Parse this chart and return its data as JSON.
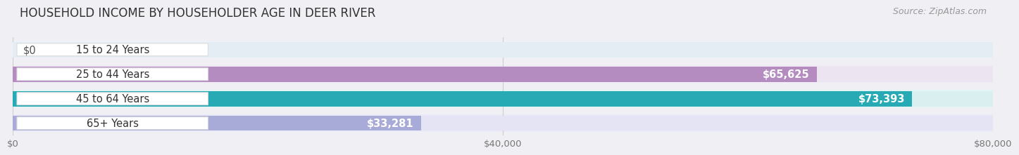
{
  "title": "HOUSEHOLD INCOME BY HOUSEHOLDER AGE IN DEER RIVER",
  "source": "Source: ZipAtlas.com",
  "categories": [
    "15 to 24 Years",
    "25 to 44 Years",
    "45 to 64 Years",
    "65+ Years"
  ],
  "values": [
    0,
    65625,
    73393,
    33281
  ],
  "value_labels": [
    "$0",
    "$65,625",
    "$73,393",
    "$33,281"
  ],
  "bar_colors": [
    "#a8c4e0",
    "#b48cc0",
    "#28aab4",
    "#a8aad8"
  ],
  "bar_bg_colors": [
    "#e4ecf4",
    "#ece4f0",
    "#daf0f0",
    "#e4e4f4"
  ],
  "bg_outer_colors": [
    "#eef2f8",
    "#f0eaf6",
    "#e2f4f4",
    "#eaeaf8"
  ],
  "xlim": [
    0,
    80000
  ],
  "xticks": [
    0,
    40000,
    80000
  ],
  "xticklabels": [
    "$0",
    "$40,000",
    "$80,000"
  ],
  "background_color": "#f0f0f4",
  "title_fontsize": 12,
  "label_fontsize": 10.5,
  "tick_fontsize": 9.5,
  "source_fontsize": 9
}
